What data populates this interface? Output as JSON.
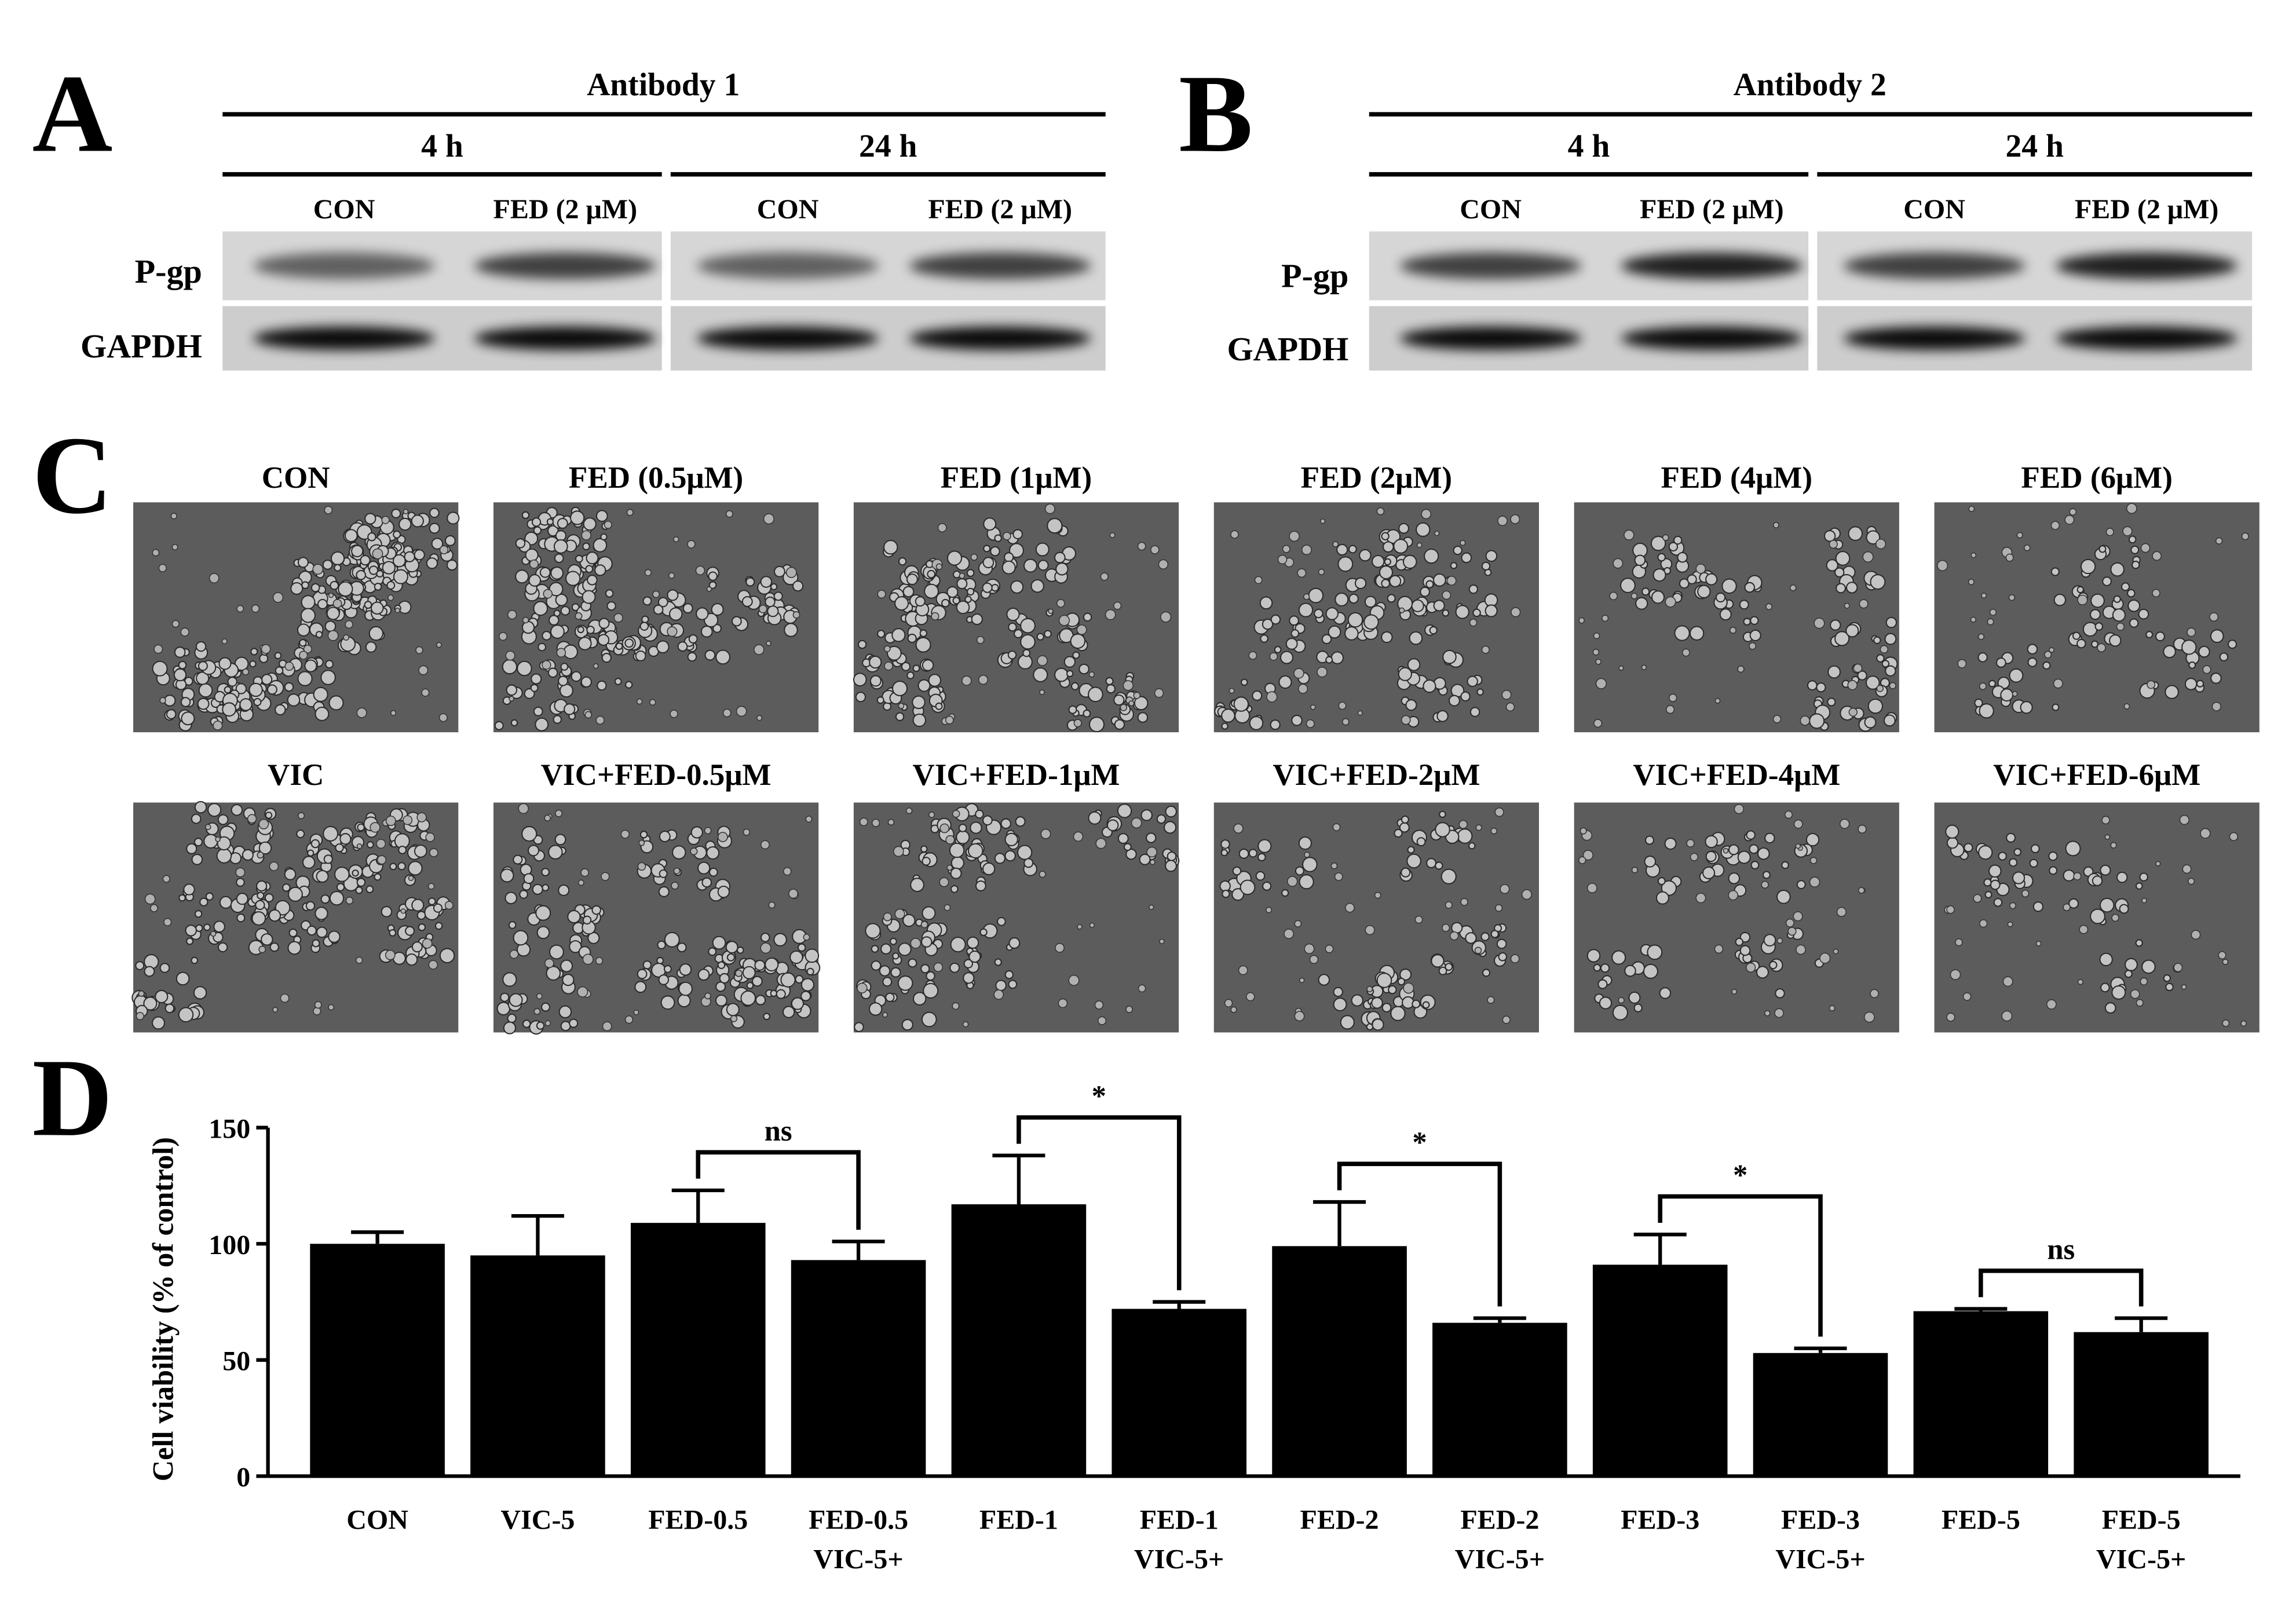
{
  "blots": [
    {
      "letter": "A",
      "antibody": "Antibody 1",
      "times": [
        "4 h",
        "24 h"
      ],
      "lanes": [
        "CON",
        "FED (2 μM)",
        "CON",
        "FED (2 μM)"
      ],
      "proteins": [
        "P-gp",
        "GAPDH"
      ]
    },
    {
      "letter": "B",
      "antibody": "Antibody 2",
      "times": [
        "4 h",
        "24 h"
      ],
      "lanes": [
        "CON",
        "FED (2 μM)",
        "CON",
        "FED (2 μM)"
      ],
      "proteins": [
        "P-gp",
        "GAPDH"
      ]
    }
  ],
  "micrographs": {
    "letter": "C",
    "rows": [
      [
        "CON",
        "FED (0.5μM)",
        "FED (1μM)",
        "FED (2μM)",
        "FED (4μM)",
        "FED (6μM)"
      ],
      [
        "VIC",
        "VIC+FED-0.5μM",
        "VIC+FED-1μM",
        "VIC+FED-2μM",
        "VIC+FED-4μM",
        "VIC+FED-6μM"
      ]
    ]
  },
  "chart_letter": "D",
  "chart_data": {
    "type": "bar",
    "ylabel": "Cell viability (% of control)",
    "categories": [
      "CON",
      "VIC-5",
      "FED-0.5",
      "FED-0.5\nVIC-5+",
      "FED-1",
      "FED-1\nVIC-5+",
      "FED-2",
      "FED-2\nVIC-5+",
      "FED-3",
      "FED-3\nVIC-5+",
      "FED-5",
      "FED-5\nVIC-5+"
    ],
    "values": [
      100,
      95,
      109,
      93,
      117,
      72,
      99,
      66,
      91,
      53,
      71,
      62
    ],
    "errors": [
      5,
      17,
      14,
      8,
      21,
      3,
      19,
      2,
      13,
      2,
      1,
      6
    ],
    "significance": [
      null,
      null,
      "ns",
      null,
      "*",
      null,
      "*",
      null,
      "*",
      null,
      "ns",
      null
    ],
    "color": "#000000",
    "ylim": [
      0,
      150
    ],
    "yticks": [
      0,
      50,
      100,
      150
    ]
  }
}
